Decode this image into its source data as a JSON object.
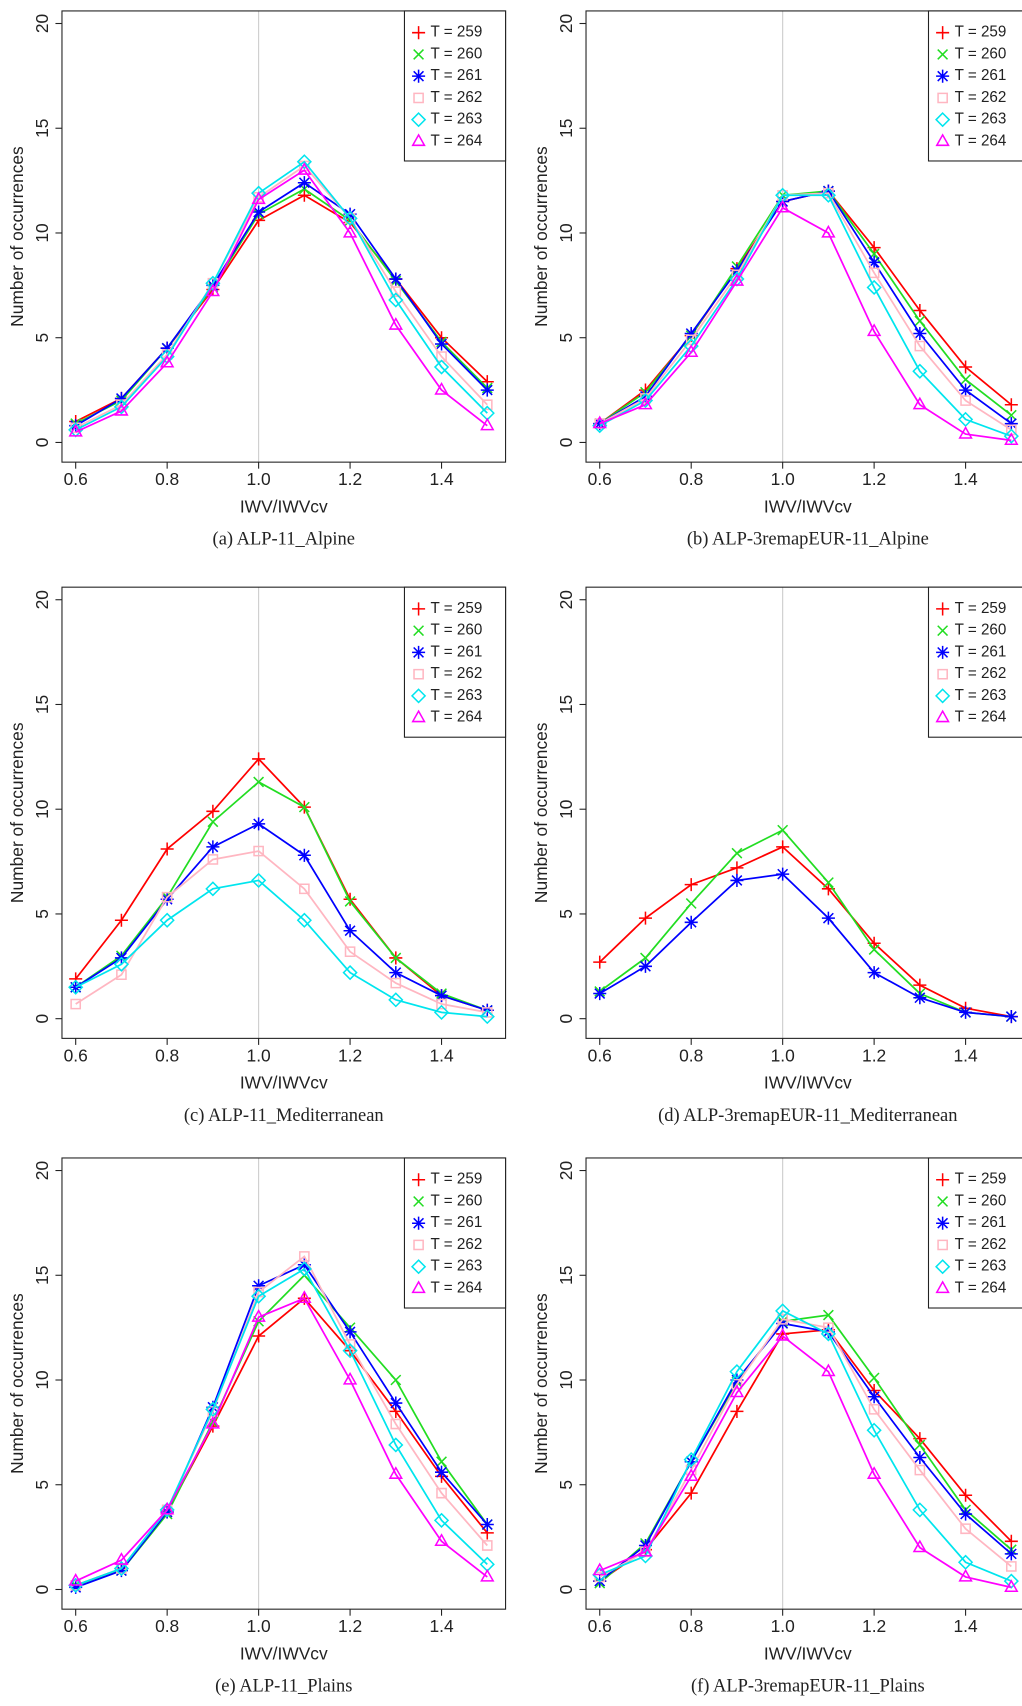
{
  "chart_data": [
    {
      "type": "line",
      "caption": "(a) ALP-11_Alpine",
      "xlabel": "IWV/IWVcv",
      "ylabel": "Number of occurrences",
      "x": [
        0.6,
        0.7,
        0.8,
        0.9,
        1.0,
        1.1,
        1.2,
        1.3,
        1.4,
        1.5
      ],
      "xlim": [
        0.57,
        1.54
      ],
      "ylim": [
        -0.94,
        20.6
      ],
      "xticks": [
        0.6,
        0.8,
        {
          "value": 1,
          "label": "1.0"
        },
        1.2,
        1.4
      ],
      "yticks": [
        0,
        5,
        10,
        15,
        20
      ],
      "vline": 1,
      "legend": "top-right",
      "series": [
        {
          "name": "T = 259",
          "color": "#ff0000",
          "marker": "plus",
          "values": [
            1.0,
            2.1,
            4.5,
            7.3,
            10.6,
            11.8,
            10.5,
            7.8,
            5.0,
            2.9
          ]
        },
        {
          "name": "T = 260",
          "color": "#22dd22",
          "marker": "cross",
          "values": [
            0.9,
            2.0,
            4.5,
            7.4,
            10.9,
            12.1,
            10.6,
            7.7,
            4.8,
            2.6
          ]
        },
        {
          "name": "T = 261",
          "color": "#0000ff",
          "marker": "star",
          "values": [
            0.8,
            2.1,
            4.5,
            7.5,
            11.0,
            12.4,
            10.9,
            7.8,
            4.7,
            2.5
          ]
        },
        {
          "name": "T = 262",
          "color": "#ffb6c1",
          "marker": "square",
          "values": [
            0.7,
            1.8,
            4.2,
            7.6,
            11.7,
            13.2,
            10.7,
            7.2,
            4.1,
            1.8
          ]
        },
        {
          "name": "T = 263",
          "color": "#00e5ee",
          "marker": "diamond",
          "values": [
            0.6,
            1.7,
            4.1,
            7.6,
            11.9,
            13.4,
            10.7,
            6.8,
            3.6,
            1.4
          ]
        },
        {
          "name": "T = 264",
          "color": "#ff00ff",
          "marker": "triangle",
          "values": [
            0.5,
            1.5,
            3.8,
            7.2,
            11.6,
            13.0,
            10.0,
            5.6,
            2.5,
            0.8
          ]
        }
      ]
    },
    {
      "type": "line",
      "caption": "(b) ALP-3remapEUR-11_Alpine",
      "xlabel": "IWV/IWVcv",
      "ylabel": "Number of occurrences",
      "x": [
        0.6,
        0.7,
        0.8,
        0.9,
        1.0,
        1.1,
        1.2,
        1.3,
        1.4,
        1.5
      ],
      "xlim": [
        0.57,
        1.54
      ],
      "ylim": [
        -0.94,
        20.6
      ],
      "xticks": [
        0.6,
        0.8,
        {
          "value": 1,
          "label": "1.0"
        },
        1.2,
        1.4
      ],
      "yticks": [
        0,
        5,
        10,
        15,
        20
      ],
      "vline": 1,
      "legend": "top-right",
      "series": [
        {
          "name": "T = 259",
          "color": "#ff0000",
          "marker": "plus",
          "values": [
            0.9,
            2.5,
            5.1,
            8.3,
            11.5,
            12.0,
            9.3,
            6.3,
            3.6,
            1.8
          ]
        },
        {
          "name": "T = 260",
          "color": "#22dd22",
          "marker": "cross",
          "values": [
            0.9,
            2.4,
            5.1,
            8.4,
            11.8,
            12.0,
            9.0,
            5.8,
            3.0,
            1.3
          ]
        },
        {
          "name": "T = 261",
          "color": "#0000ff",
          "marker": "star",
          "values": [
            0.9,
            2.2,
            5.2,
            8.2,
            11.5,
            12.0,
            8.6,
            5.2,
            2.5,
            0.9
          ]
        },
        {
          "name": "T = 262",
          "color": "#ffb6c1",
          "marker": "square",
          "values": [
            0.9,
            2.1,
            4.9,
            8.0,
            11.8,
            11.9,
            8.1,
            4.6,
            2.0,
            0.6
          ]
        },
        {
          "name": "T = 263",
          "color": "#00e5ee",
          "marker": "diamond",
          "values": [
            0.8,
            2.0,
            4.6,
            7.8,
            11.8,
            11.8,
            7.4,
            3.4,
            1.1,
            0.3
          ]
        },
        {
          "name": "T = 264",
          "color": "#ff00ff",
          "marker": "triangle",
          "values": [
            0.9,
            1.8,
            4.3,
            7.7,
            11.2,
            10.0,
            5.3,
            1.8,
            0.4,
            0.1
          ]
        }
      ]
    },
    {
      "type": "line",
      "caption": "(c) ALP-11_Mediterranean",
      "xlabel": "IWV/IWVcv",
      "ylabel": "Number of occurrences",
      "x": [
        0.6,
        0.7,
        0.8,
        0.9,
        1.0,
        1.1,
        1.2,
        1.3,
        1.4,
        1.5
      ],
      "xlim": [
        0.57,
        1.54
      ],
      "ylim": [
        -0.94,
        20.6
      ],
      "xticks": [
        0.6,
        0.8,
        {
          "value": 1,
          "label": "1.0"
        },
        1.2,
        1.4
      ],
      "yticks": [
        0,
        5,
        10,
        15,
        20
      ],
      "vline": 1,
      "legend": "top-right",
      "series": [
        {
          "name": "T = 259",
          "color": "#ff0000",
          "marker": "plus",
          "values": [
            1.9,
            4.7,
            8.1,
            9.9,
            12.4,
            10.1,
            5.7,
            2.9,
            1.1,
            0.4
          ]
        },
        {
          "name": "T = 260",
          "color": "#22dd22",
          "marker": "cross",
          "values": [
            1.5,
            3.0,
            5.8,
            9.4,
            11.3,
            10.1,
            5.6,
            2.9,
            1.2,
            0.4
          ]
        },
        {
          "name": "T = 261",
          "color": "#0000ff",
          "marker": "star",
          "values": [
            1.5,
            2.9,
            5.7,
            8.2,
            9.3,
            7.8,
            4.2,
            2.2,
            1.1,
            0.4
          ]
        },
        {
          "name": "T = 262",
          "color": "#ffb6c1",
          "marker": "square",
          "values": [
            0.7,
            2.1,
            5.8,
            7.6,
            8.0,
            6.2,
            3.2,
            1.7,
            0.7,
            0.3
          ]
        },
        {
          "name": "T = 263",
          "color": "#00e5ee",
          "marker": "diamond",
          "values": [
            1.5,
            2.6,
            4.7,
            6.2,
            6.6,
            4.7,
            2.2,
            0.9,
            0.3,
            0.1
          ]
        },
        {
          "name": "T = 264",
          "color": "#ff00ff",
          "marker": "triangle",
          "values": [
            null,
            null,
            null,
            null,
            null,
            null,
            null,
            null,
            null,
            null
          ]
        }
      ]
    },
    {
      "type": "line",
      "caption": "(d) ALP-3remapEUR-11_Mediterranean",
      "xlabel": "IWV/IWVcv",
      "ylabel": "Number of occurrences",
      "x": [
        0.6,
        0.7,
        0.8,
        0.9,
        1.0,
        1.1,
        1.2,
        1.3,
        1.4,
        1.5
      ],
      "xlim": [
        0.57,
        1.54
      ],
      "ylim": [
        -0.94,
        20.6
      ],
      "xticks": [
        0.6,
        0.8,
        {
          "value": 1,
          "label": "1.0"
        },
        1.2,
        1.4
      ],
      "yticks": [
        0,
        5,
        10,
        15,
        20
      ],
      "vline": 1,
      "legend": "top-right",
      "series": [
        {
          "name": "T = 259",
          "color": "#ff0000",
          "marker": "plus",
          "values": [
            2.7,
            4.8,
            6.4,
            7.2,
            8.2,
            6.2,
            3.6,
            1.6,
            0.5,
            0.1
          ]
        },
        {
          "name": "T = 260",
          "color": "#22dd22",
          "marker": "cross",
          "values": [
            1.3,
            2.9,
            5.5,
            7.9,
            9.0,
            6.5,
            3.3,
            1.2,
            0.3,
            0.1
          ]
        },
        {
          "name": "T = 261",
          "color": "#0000ff",
          "marker": "star",
          "values": [
            1.2,
            2.5,
            4.6,
            6.6,
            6.9,
            4.8,
            2.2,
            1.0,
            0.3,
            0.1
          ]
        },
        {
          "name": "T = 262",
          "color": "#ffb6c1",
          "marker": "square",
          "values": [
            null,
            null,
            null,
            null,
            null,
            null,
            null,
            null,
            null,
            null
          ]
        },
        {
          "name": "T = 263",
          "color": "#00e5ee",
          "marker": "diamond",
          "values": [
            null,
            null,
            null,
            null,
            null,
            null,
            null,
            null,
            null,
            null
          ]
        },
        {
          "name": "T = 264",
          "color": "#ff00ff",
          "marker": "triangle",
          "values": [
            null,
            null,
            null,
            null,
            null,
            null,
            null,
            null,
            null,
            null
          ]
        }
      ]
    },
    {
      "type": "line",
      "caption": "(e) ALP-11_Plains",
      "xlabel": "IWV/IWVcv",
      "ylabel": "Number of occurrences",
      "x": [
        0.6,
        0.7,
        0.8,
        0.9,
        1.0,
        1.1,
        1.2,
        1.3,
        1.4,
        1.5
      ],
      "xlim": [
        0.57,
        1.54
      ],
      "ylim": [
        -0.94,
        20.6
      ],
      "xticks": [
        0.6,
        0.8,
        {
          "value": 1,
          "label": "1.0"
        },
        1.2,
        1.4
      ],
      "yticks": [
        0,
        5,
        10,
        15,
        20
      ],
      "vline": 1,
      "legend": "top-right",
      "series": [
        {
          "name": "T = 259",
          "color": "#ff0000",
          "marker": "plus",
          "values": [
            0.2,
            1.0,
            3.7,
            7.8,
            12.1,
            13.9,
            11.4,
            8.5,
            5.4,
            2.7
          ]
        },
        {
          "name": "T = 260",
          "color": "#22dd22",
          "marker": "cross",
          "values": [
            0.2,
            0.9,
            3.6,
            8.0,
            12.8,
            15.0,
            12.5,
            10.0,
            6.1,
            3.1
          ]
        },
        {
          "name": "T = 261",
          "color": "#0000ff",
          "marker": "star",
          "values": [
            0.1,
            0.9,
            3.7,
            8.7,
            14.5,
            15.5,
            12.3,
            8.9,
            5.6,
            3.1
          ]
        },
        {
          "name": "T = 262",
          "color": "#ffb6c1",
          "marker": "square",
          "values": [
            0.2,
            1.0,
            3.8,
            8.5,
            14.2,
            15.9,
            11.7,
            7.9,
            4.6,
            2.1
          ]
        },
        {
          "name": "T = 263",
          "color": "#00e5ee",
          "marker": "diamond",
          "values": [
            0.2,
            1.0,
            3.8,
            8.6,
            14.0,
            15.3,
            11.4,
            6.9,
            3.3,
            1.2
          ]
        },
        {
          "name": "T = 264",
          "color": "#ff00ff",
          "marker": "triangle",
          "values": [
            0.4,
            1.4,
            3.8,
            7.9,
            13.0,
            13.9,
            10.0,
            5.5,
            2.3,
            0.6
          ]
        }
      ]
    },
    {
      "type": "line",
      "caption": "(f) ALP-3remapEUR-11_Plains",
      "xlabel": "IWV/IWVcv",
      "ylabel": "Number of occurrences",
      "x": [
        0.6,
        0.7,
        0.8,
        0.9,
        1.0,
        1.1,
        1.2,
        1.3,
        1.4,
        1.5
      ],
      "xlim": [
        0.57,
        1.54
      ],
      "ylim": [
        -0.94,
        20.6
      ],
      "xticks": [
        0.6,
        0.8,
        {
          "value": 1,
          "label": "1.0"
        },
        1.2,
        1.4
      ],
      "yticks": [
        0,
        5,
        10,
        15,
        20
      ],
      "vline": 1,
      "legend": "top-right",
      "series": [
        {
          "name": "T = 259",
          "color": "#ff0000",
          "marker": "plus",
          "values": [
            0.4,
            1.9,
            4.6,
            8.5,
            12.2,
            12.4,
            9.5,
            7.2,
            4.5,
            2.3
          ]
        },
        {
          "name": "T = 260",
          "color": "#22dd22",
          "marker": "cross",
          "values": [
            0.3,
            2.2,
            6.1,
            9.9,
            12.8,
            13.1,
            10.1,
            6.9,
            3.8,
            1.9
          ]
        },
        {
          "name": "T = 261",
          "color": "#0000ff",
          "marker": "star",
          "values": [
            0.4,
            2.1,
            6.1,
            10.0,
            12.7,
            12.3,
            9.2,
            6.3,
            3.6,
            1.7
          ]
        },
        {
          "name": "T = 262",
          "color": "#ffb6c1",
          "marker": "square",
          "values": [
            0.6,
            1.8,
            5.7,
            9.8,
            12.9,
            12.5,
            8.6,
            5.7,
            2.9,
            1.1
          ]
        },
        {
          "name": "T = 263",
          "color": "#00e5ee",
          "marker": "diamond",
          "values": [
            0.7,
            1.6,
            6.2,
            10.4,
            13.3,
            12.2,
            7.6,
            3.8,
            1.3,
            0.4
          ]
        },
        {
          "name": "T = 264",
          "color": "#ff00ff",
          "marker": "triangle",
          "values": [
            0.9,
            1.8,
            5.4,
            9.4,
            12.1,
            10.4,
            5.5,
            2.0,
            0.6,
            0.1
          ]
        }
      ]
    }
  ]
}
